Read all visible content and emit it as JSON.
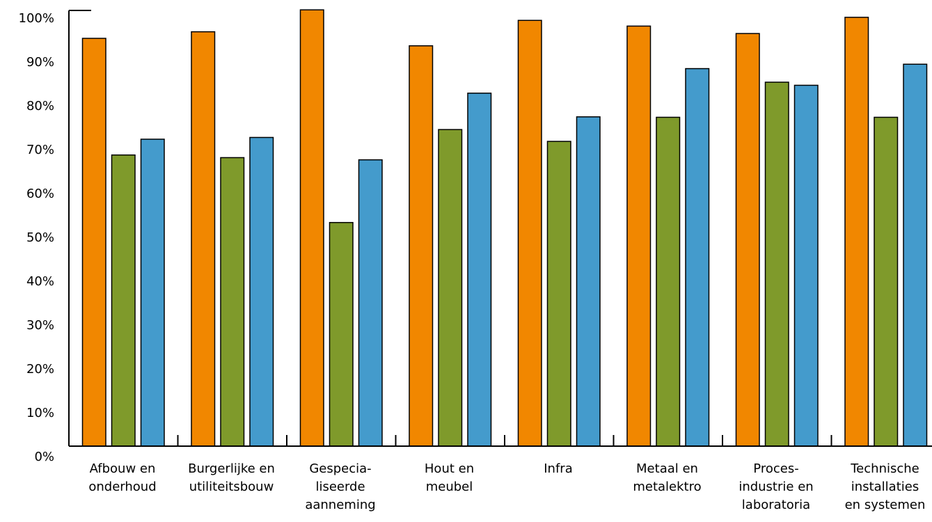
{
  "chart_data": {
    "type": "bar",
    "title": "",
    "xlabel": "",
    "ylabel": "",
    "ylim": [
      0,
      100
    ],
    "yticks": [
      "0%",
      "10%",
      "20%",
      "30%",
      "40%",
      "50%",
      "60%",
      "70%",
      "80%",
      "90%",
      "100%"
    ],
    "grid": false,
    "categories": [
      [
        "Afbouw en",
        "onderhoud"
      ],
      [
        "Burgerlijke en",
        "utiliteitsbouw"
      ],
      [
        "Gespecia-",
        "liseerde",
        "aanneming"
      ],
      [
        "Hout en",
        "meubel"
      ],
      [
        "Infra"
      ],
      [
        "Metaal en",
        "metalektro"
      ],
      [
        "Proces-",
        "industrie en",
        "laboratoria"
      ],
      [
        "Technische",
        "installaties",
        "en systemen"
      ]
    ],
    "series": [
      {
        "color": "#F18700",
        "values": [
          93.0,
          94.5,
          99.5,
          91.3,
          97.1,
          95.8,
          94.1,
          97.8
        ]
      },
      {
        "color": "#7F9A2B",
        "values": [
          66.4,
          65.8,
          51.0,
          72.2,
          69.5,
          75.0,
          83.0,
          75.0
        ]
      },
      {
        "color": "#449BCC",
        "values": [
          70.0,
          70.4,
          65.3,
          80.5,
          75.1,
          86.1,
          82.3,
          87.1
        ]
      }
    ]
  }
}
